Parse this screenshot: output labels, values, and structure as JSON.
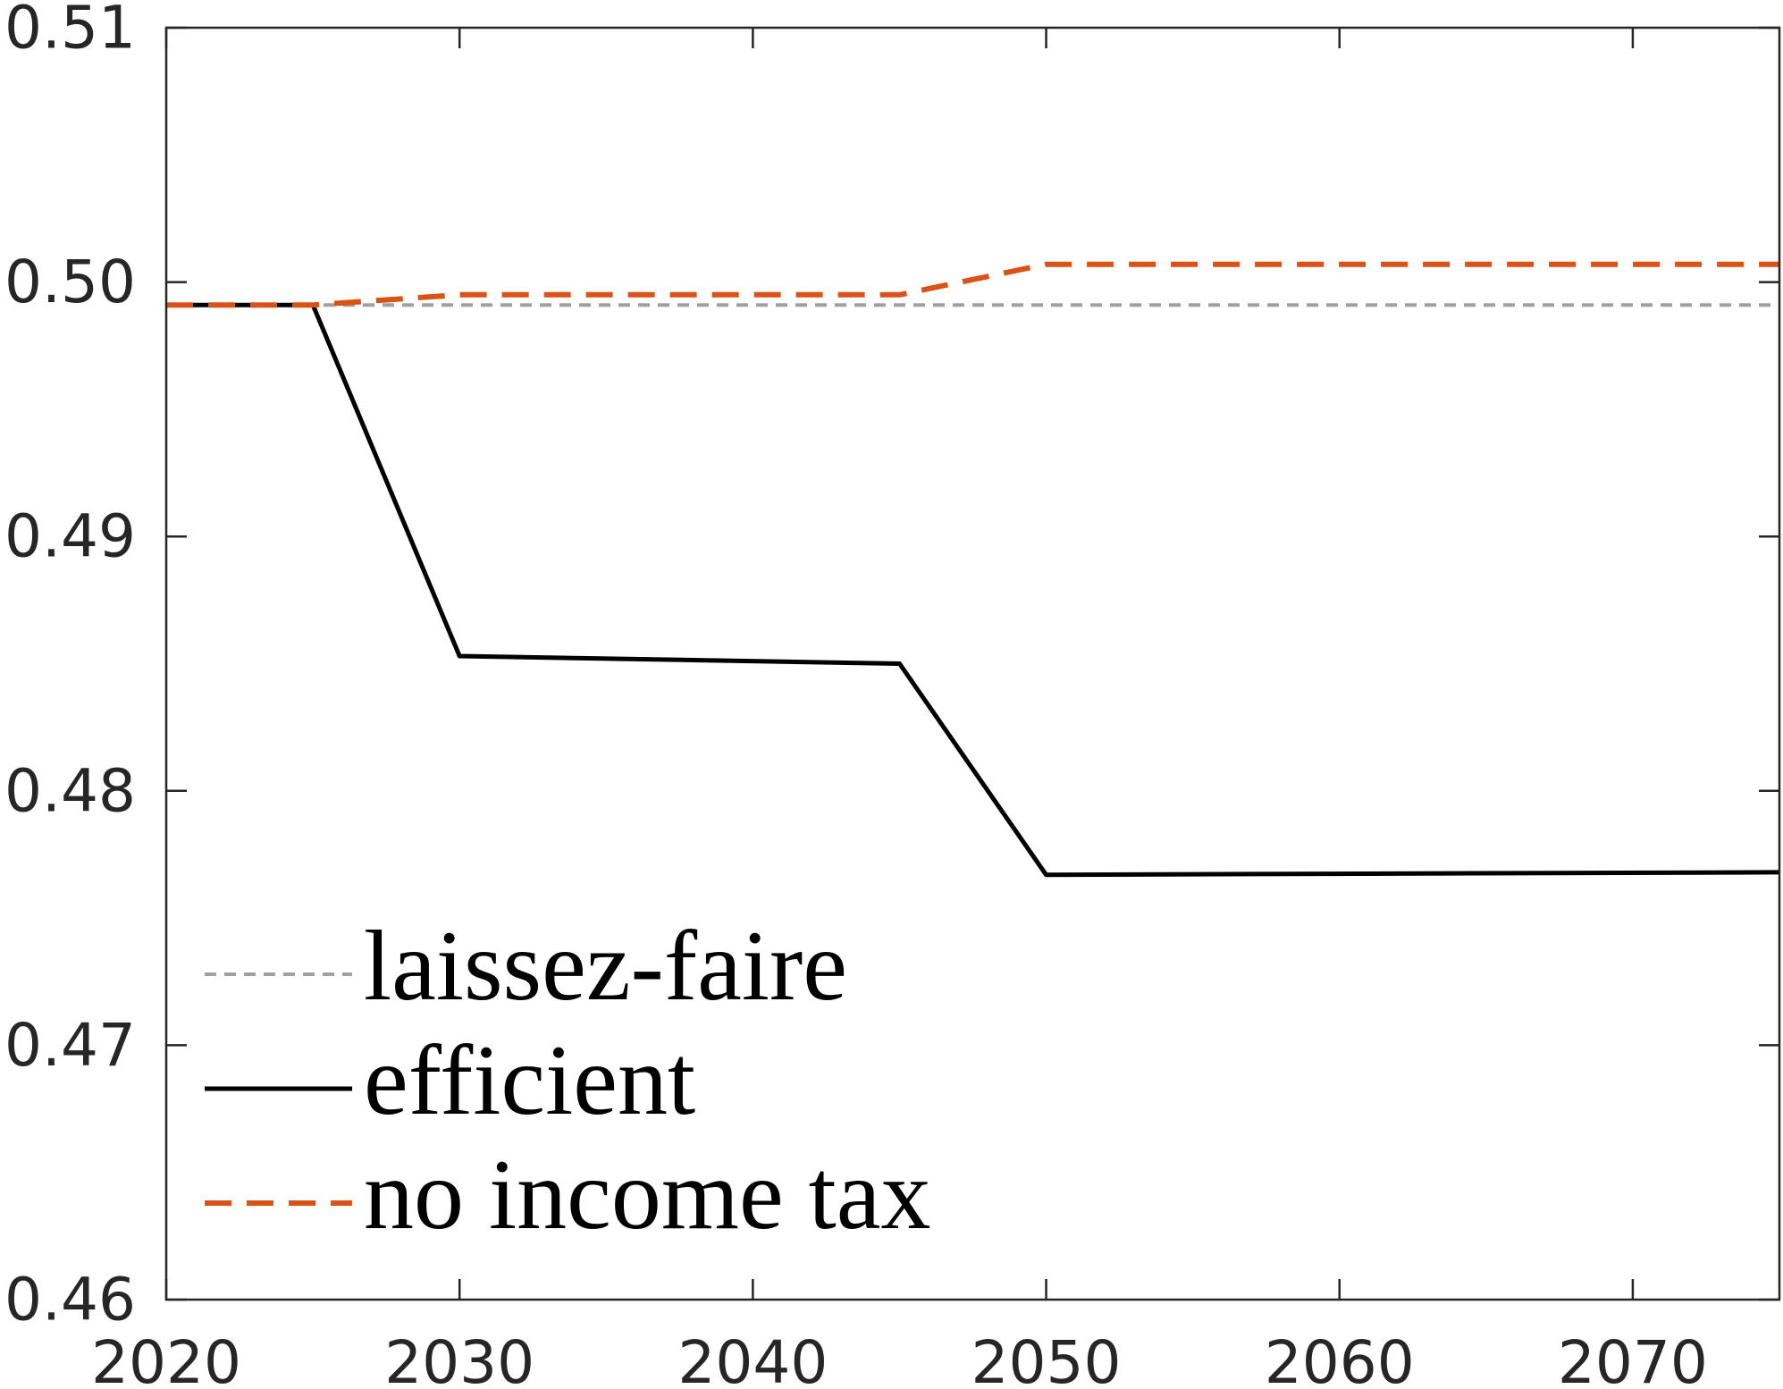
{
  "chart_data": {
    "type": "line",
    "title": "",
    "xlabel": "",
    "ylabel": "",
    "xlim": [
      2020,
      2075
    ],
    "ylim": [
      0.46,
      0.51
    ],
    "x_ticks": [
      "2020",
      "2030",
      "2040",
      "2050",
      "2060",
      "2070"
    ],
    "y_ticks": [
      "0.46",
      "0.47",
      "0.48",
      "0.49",
      "0.50",
      "0.51"
    ],
    "grid": false,
    "legend_position": "bottom-left",
    "axis_color": "#262626",
    "series": [
      {
        "name": "laissez-faire",
        "color": "#A0A0A0",
        "style": "dashed",
        "x": [
          2020,
          2075
        ],
        "y": [
          0.4991,
          0.4991
        ]
      },
      {
        "name": "efficient",
        "color": "#000000",
        "style": "solid",
        "x": [
          2020,
          2025,
          2030,
          2045,
          2050,
          2075
        ],
        "y": [
          0.4991,
          0.4991,
          0.4853,
          0.485,
          0.4767,
          0.4768
        ]
      },
      {
        "name": "no income tax",
        "color": "#D95319",
        "style": "dashed",
        "x": [
          2020,
          2025,
          2030,
          2045,
          2050,
          2075
        ],
        "y": [
          0.4991,
          0.4991,
          0.4995,
          0.4995,
          0.5007,
          0.5007
        ]
      }
    ]
  }
}
